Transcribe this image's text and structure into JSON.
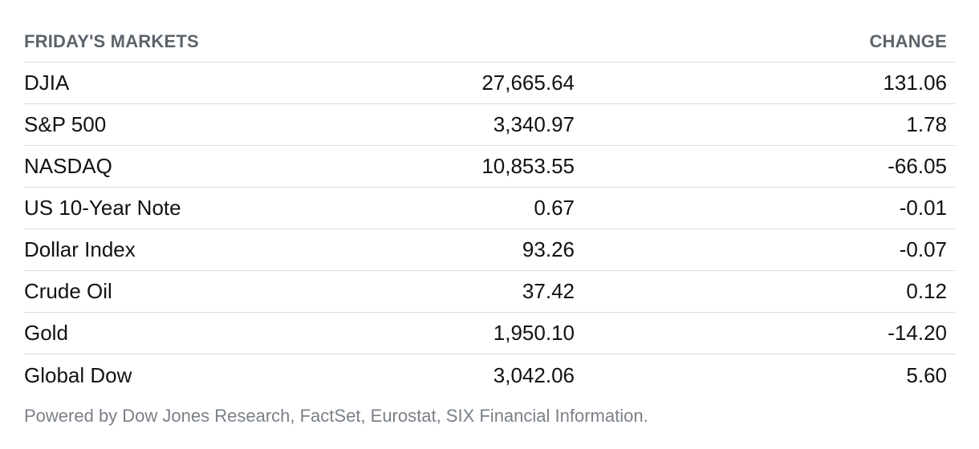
{
  "header": {
    "title": "FRIDAY'S MARKETS",
    "change_label": "CHANGE"
  },
  "rows": [
    {
      "name": "DJIA",
      "value": "27,665.64",
      "change": "131.06"
    },
    {
      "name": "S&P 500",
      "value": "3,340.97",
      "change": "1.78"
    },
    {
      "name": "NASDAQ",
      "value": "10,853.55",
      "change": "-66.05"
    },
    {
      "name": "US 10-Year Note",
      "value": "0.67",
      "change": "-0.01"
    },
    {
      "name": "Dollar Index",
      "value": "93.26",
      "change": "-0.07"
    },
    {
      "name": "Crude Oil",
      "value": "37.42",
      "change": "0.12"
    },
    {
      "name": "Gold",
      "value": "1,950.10",
      "change": "-14.20"
    },
    {
      "name": "Global Dow",
      "value": "3,042.06",
      "change": "5.60"
    }
  ],
  "footer": {
    "source": "Powered by Dow Jones Research, FactSet, Eurostat, SIX Financial Information."
  }
}
